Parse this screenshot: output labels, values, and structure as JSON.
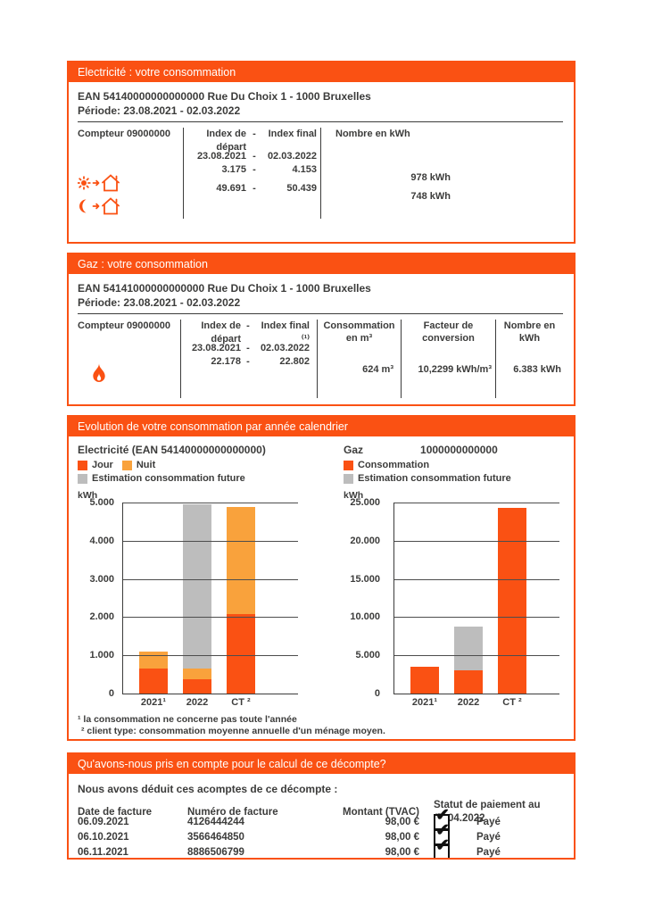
{
  "colors": {
    "orange": "#fa5113",
    "nuit": "#f9a23c",
    "estimation_gray": "#bdbdbd",
    "text": "#3c3c3b"
  },
  "electricity": {
    "section_title": "Electricité : votre consommation",
    "ean_line": "EAN 54140000000000000    Rue Du Choix 1 - 1000 Bruxelles",
    "period_line": "Période: 23.08.2021 - 02.03.2022",
    "meter_label": "Compteur 09000000",
    "dash": "-",
    "col_index_start": "Index de départ",
    "col_index_end": "Index final",
    "col_kwh": "Nombre en kWh",
    "date_start": "23.08.2021",
    "date_end": "02.03.2022",
    "rows": [
      {
        "icon": "day-house-icon",
        "start": "3.175",
        "end": "4.153",
        "kwh": "978 kWh"
      },
      {
        "icon": "night-house-icon",
        "start": "49.691",
        "end": "50.439",
        "kwh": "748 kWh"
      }
    ]
  },
  "gas": {
    "section_title": "Gaz : votre consommation",
    "ean_line": "EAN 54141000000000000    Rue Du Choix 1 - 1000 Bruxelles",
    "period_line": "Période: 23.08.2021 - 02.03.2022",
    "meter_label": "Compteur 09000000",
    "dash": "-",
    "col_index_start": "Index de départ",
    "col_index_end": "Index final ⁽¹⁾",
    "col_m3": "Consommation en m³",
    "col_factor": "Facteur de conversion",
    "col_kwh": "Nombre en kWh",
    "date_start": "23.08.2021",
    "date_end": "02.03.2022",
    "index_start": "22.178",
    "index_end": "22.802",
    "consumption_m3": "624 m³",
    "conversion_factor": "10,2299 kWh/m³",
    "kwh": "6.383 kWh"
  },
  "evolution": {
    "section_title": "Evolution de votre consommation par année calendrier",
    "footnote1": "¹ la consommation ne concerne pas toute l'année",
    "footnote2": "² client type: consommation moyenne annuelle d'un ménage moyen."
  },
  "chart_data": [
    {
      "type": "bar",
      "stacked": true,
      "title": "Electricité (EAN 54140000000000000)",
      "ylabel": "kWh",
      "ylim": [
        0,
        5000
      ],
      "ytick_labels": [
        "0",
        "1.000",
        "2.000",
        "3.000",
        "4.000",
        "5.000"
      ],
      "categories": [
        "2021¹",
        "2022",
        "CT ²"
      ],
      "series": [
        {
          "name": "Jour",
          "color": "#fa5113",
          "values": [
            650,
            370,
            2070
          ]
        },
        {
          "name": "Nuit",
          "color": "#f9a23c",
          "values": [
            450,
            280,
            2780
          ]
        },
        {
          "name": "Estimation consommation future",
          "color": "#bdbdbd",
          "values": [
            0,
            4280,
            0
          ]
        }
      ],
      "legend_position": "top",
      "grid": true
    },
    {
      "type": "bar",
      "stacked": true,
      "title": "Gaz",
      "title_extra": "1000000000000",
      "ylabel": "kWh",
      "ylim": [
        0,
        25000
      ],
      "ytick_labels": [
        "0",
        "5.000",
        "10.000",
        "15.000",
        "20.000",
        "25.000"
      ],
      "categories": [
        "2021¹",
        "2022",
        "CT ²"
      ],
      "series": [
        {
          "name": "Consommation",
          "color": "#fa5113",
          "values": [
            3500,
            3000,
            24200
          ]
        },
        {
          "name": "Estimation consommation future",
          "color": "#bdbdbd",
          "values": [
            0,
            5700,
            0
          ]
        }
      ],
      "legend_position": "top",
      "grid": true
    }
  ],
  "acomptes": {
    "section_title": "Qu'avons-nous pris en compte pour le calcul de ce décompte?",
    "intro": "Nous avons déduit ces acomptes de ce décompte :",
    "headers": [
      "Date de facture",
      "Numéro de facture",
      "Montant (TVAC)",
      "Statut de paiement au 07.04.2022"
    ],
    "rows": [
      {
        "date": "06.09.2021",
        "number": "4126444244",
        "amount": "98,00 €",
        "status": "Payé",
        "checked": true
      },
      {
        "date": "06.10.2021",
        "number": "3566464850",
        "amount": "98,00 €",
        "status": "Payé",
        "checked": true
      },
      {
        "date": "06.11.2021",
        "number": "8886506799",
        "amount": "98,00 €",
        "status": "Payé",
        "checked": true
      }
    ]
  }
}
